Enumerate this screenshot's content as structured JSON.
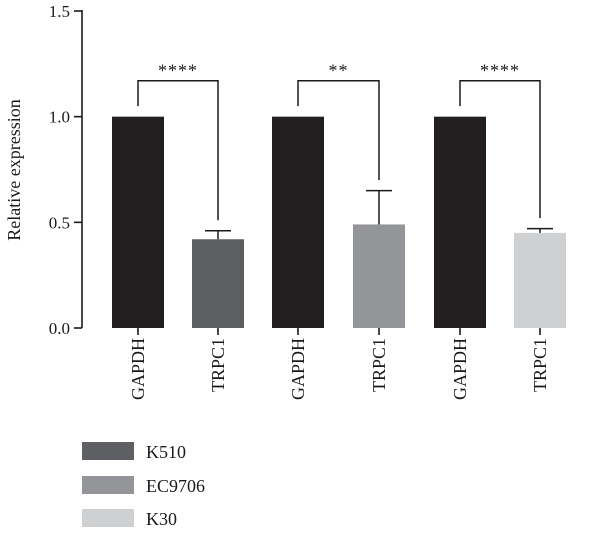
{
  "chart_data": {
    "type": "bar",
    "ylabel": "Relative expression",
    "ylim": [
      0,
      1.5
    ],
    "yticks": [
      "0.0",
      "0.5",
      "1.0",
      "1.5"
    ],
    "bars": [
      {
        "label": "GAPDH",
        "group": "K510",
        "value": 1.0,
        "error": 0,
        "color": "#231f20"
      },
      {
        "label": "TRPC1",
        "group": "K510",
        "value": 0.42,
        "error": 0.04,
        "color": "#5e5f63"
      },
      {
        "label": "GAPDH",
        "group": "EC9706",
        "value": 1.0,
        "error": 0,
        "color": "#231f20"
      },
      {
        "label": "TRPC1",
        "group": "EC9706",
        "value": 0.49,
        "error": 0.16,
        "color": "#939598"
      },
      {
        "label": "GAPDH",
        "group": "K30",
        "value": 1.0,
        "error": 0,
        "color": "#231f20"
      },
      {
        "label": "TRPC1",
        "group": "K30",
        "value": 0.45,
        "error": 0.02,
        "color": "#cfd0d2"
      }
    ],
    "significance": [
      {
        "from": 0,
        "to": 1,
        "label": "****",
        "y": 1.17
      },
      {
        "from": 2,
        "to": 3,
        "label": "**",
        "y": 1.17
      },
      {
        "from": 4,
        "to": 5,
        "label": "****",
        "y": 1.17
      }
    ],
    "legend": [
      {
        "label": "K510",
        "color": "#5e5f63"
      },
      {
        "label": "EC9706",
        "color": "#939598"
      },
      {
        "label": "K30",
        "color": "#cfd0d2"
      }
    ]
  }
}
